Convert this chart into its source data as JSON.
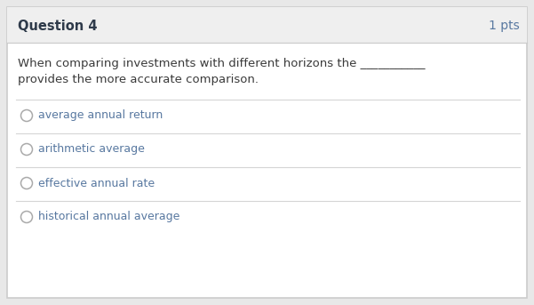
{
  "title": "Question 4",
  "pts": "1 pts",
  "question_text_line1": "When comparing investments with different horizons the ___________",
  "question_text_line2": "provides the more accurate comparison.",
  "options": [
    "average annual return",
    "arithmetic average",
    "effective annual rate",
    "historical annual average"
  ],
  "bg_header": "#efefef",
  "bg_body": "#ffffff",
  "outer_bg": "#e8e8e8",
  "border_color": "#cccccc",
  "header_text_color": "#2e3a4a",
  "question_text_color": "#3a3a3a",
  "option_text_color": "#5878a0",
  "pts_text_color": "#5878a0",
  "circle_edge_color": "#aaaaaa",
  "divider_color": "#d5d5d5",
  "title_fontsize": 10.5,
  "pts_fontsize": 10,
  "question_fontsize": 9.5,
  "option_fontsize": 9.0,
  "fig_width": 6.01,
  "fig_height": 3.43,
  "dpi": 100
}
